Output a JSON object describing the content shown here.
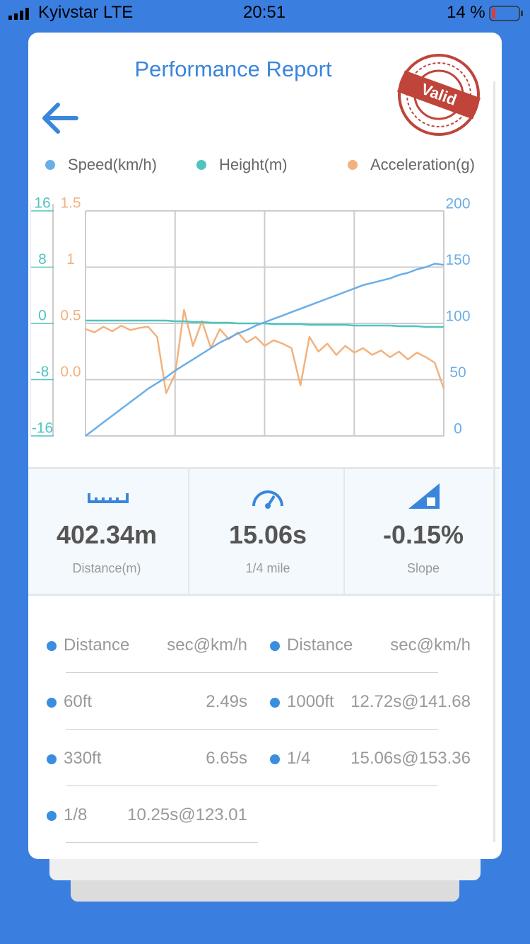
{
  "status_bar": {
    "carrier": "Kyivstar LTE",
    "time": "20:51",
    "battery": "14 %"
  },
  "header": {
    "title": "Performance Report",
    "stamp": "Valid"
  },
  "chart_data": {
    "type": "line",
    "grid": true,
    "x": [
      0,
      0.1,
      0.2,
      0.3,
      0.4,
      0.5,
      0.6,
      0.7,
      0.8,
      0.9,
      1,
      1.1,
      1.2,
      1.3,
      1.4,
      1.5,
      1.6,
      1.7,
      1.8,
      1.9,
      2,
      2.1,
      2.2,
      2.3,
      2.4,
      2.5,
      2.6,
      2.7,
      2.8,
      2.9,
      3,
      3.1,
      3.2,
      3.3,
      3.4,
      3.5,
      3.6,
      3.7,
      3.8,
      3.9,
      4
    ],
    "xlim": [
      0,
      4
    ],
    "xticks": [
      0,
      1,
      2,
      3,
      4
    ],
    "ylim": [
      -16,
      16
    ],
    "yticks": [
      16,
      8,
      0,
      -8,
      -16
    ],
    "y2lim": [
      0,
      200
    ],
    "y2ticks": [
      200,
      150,
      100,
      50,
      0
    ],
    "y3lim": [
      -0.5,
      1.5
    ],
    "y3ticks": [
      1.5,
      1,
      0.5,
      {
        "value": 0,
        "label": "0.0"
      }
    ],
    "series": [
      {
        "name": "Speed(km/h)",
        "color": "#6aaee8",
        "axis": "y2",
        "values": [
          0,
          6,
          12,
          18,
          24,
          30,
          36,
          42,
          47,
          52,
          58,
          63,
          68,
          73,
          78,
          83,
          87,
          91,
          94,
          98,
          101,
          104,
          107,
          110,
          113,
          116,
          119,
          122,
          125,
          128,
          131,
          134,
          136,
          138,
          140,
          143,
          145,
          148,
          150,
          153,
          152
        ]
      },
      {
        "name": "Height(m)",
        "color": "#4fc4be",
        "axis": "y",
        "values": [
          0.4,
          0.4,
          0.4,
          0.4,
          0.4,
          0.4,
          0.4,
          0.4,
          0.4,
          0.4,
          0.3,
          0.3,
          0.2,
          0.2,
          0.1,
          0.1,
          0.1,
          0,
          0,
          0,
          0,
          -0.1,
          -0.1,
          -0.1,
          -0.1,
          -0.2,
          -0.2,
          -0.2,
          -0.2,
          -0.2,
          -0.3,
          -0.3,
          -0.3,
          -0.3,
          -0.3,
          -0.4,
          -0.4,
          -0.4,
          -0.5,
          -0.5,
          -0.5
        ]
      },
      {
        "name": "Acceleration(g)",
        "color": "#f2b27e",
        "axis": "y3",
        "values": [
          0.45,
          0.42,
          0.47,
          0.43,
          0.48,
          0.44,
          0.46,
          0.47,
          0.38,
          -0.12,
          0.05,
          0.62,
          0.3,
          0.52,
          0.28,
          0.45,
          0.36,
          0.42,
          0.33,
          0.38,
          0.3,
          0.35,
          0.32,
          0.28,
          -0.05,
          0.38,
          0.25,
          0.32,
          0.22,
          0.3,
          0.24,
          0.28,
          0.22,
          0.26,
          0.2,
          0.25,
          0.18,
          0.24,
          0.2,
          0.15,
          -0.08
        ]
      }
    ]
  },
  "stats": [
    {
      "value": "402.34m",
      "label": "Distance(m)"
    },
    {
      "value": "15.06s",
      "label": "1/4 mile"
    },
    {
      "value": "-0.15%",
      "label": "Slope"
    }
  ],
  "results": {
    "left": [
      [
        "Distance",
        "sec@km/h"
      ],
      [
        "60ft",
        "2.49s"
      ],
      [
        "330ft",
        "6.65s"
      ],
      [
        "1/8",
        "10.25s@123.01"
      ]
    ],
    "right": [
      [
        "Distance",
        "sec@km/h"
      ],
      [
        "1000ft",
        "12.72s@141.68"
      ],
      [
        "1/4",
        "15.06s@153.36"
      ]
    ]
  }
}
